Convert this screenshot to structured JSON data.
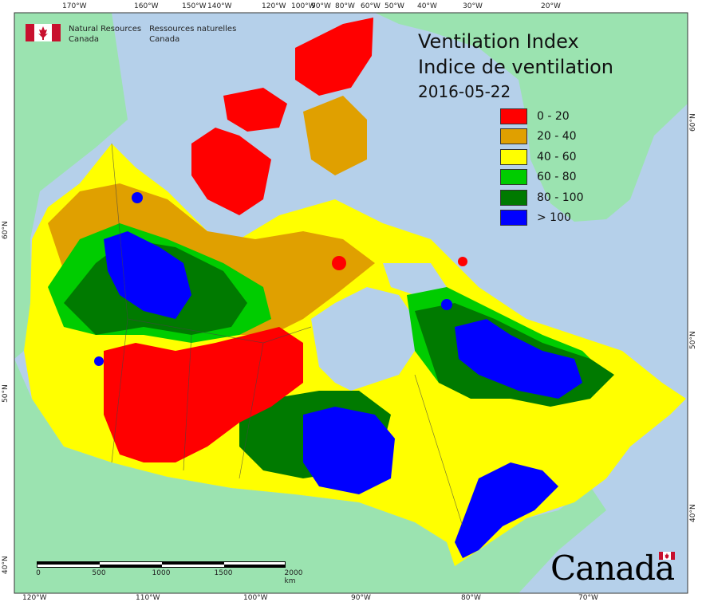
{
  "header": {
    "agency_en_1": "Natural Resources",
    "agency_en_2": "Canada",
    "agency_fr_1": "Ressources naturelles",
    "agency_fr_2": "Canada"
  },
  "title": {
    "line1": "Ventilation Index",
    "line2": "Indice de ventilation",
    "date": "2016-05-22"
  },
  "legend": [
    {
      "label": "0 - 20",
      "color": "#ff0000"
    },
    {
      "label": "20 - 40",
      "color": "#e0a000"
    },
    {
      "label": "40 - 60",
      "color": "#ffff00"
    },
    {
      "label": "60 - 80",
      "color": "#00cc00"
    },
    {
      "label": "80 - 100",
      "color": "#007a00"
    },
    {
      "label": "> 100",
      "color": "#0000ff"
    }
  ],
  "graticule": {
    "top": [
      "170°W",
      "160°W",
      "150°W",
      "140°W",
      "120°W",
      "100°W",
      "90°W",
      "80°W",
      "60°W",
      "50°W",
      "40°W",
      "30°W",
      "20°W"
    ],
    "bottom": [
      "120°W",
      "110°W",
      "100°W",
      "90°W",
      "80°W",
      "70°W"
    ],
    "left": [
      "60°N",
      "50°N",
      "40°N"
    ],
    "right": [
      "60°N",
      "50°N",
      "40°N"
    ]
  },
  "scalebar": {
    "ticks": [
      "0",
      "500",
      "1000",
      "1500",
      "2000"
    ],
    "unit": "km"
  },
  "wordmark": "Canada",
  "colors": {
    "ocean": "#b5d0ea",
    "land_foreign": "#9be3b0",
    "frame": "#333333"
  }
}
